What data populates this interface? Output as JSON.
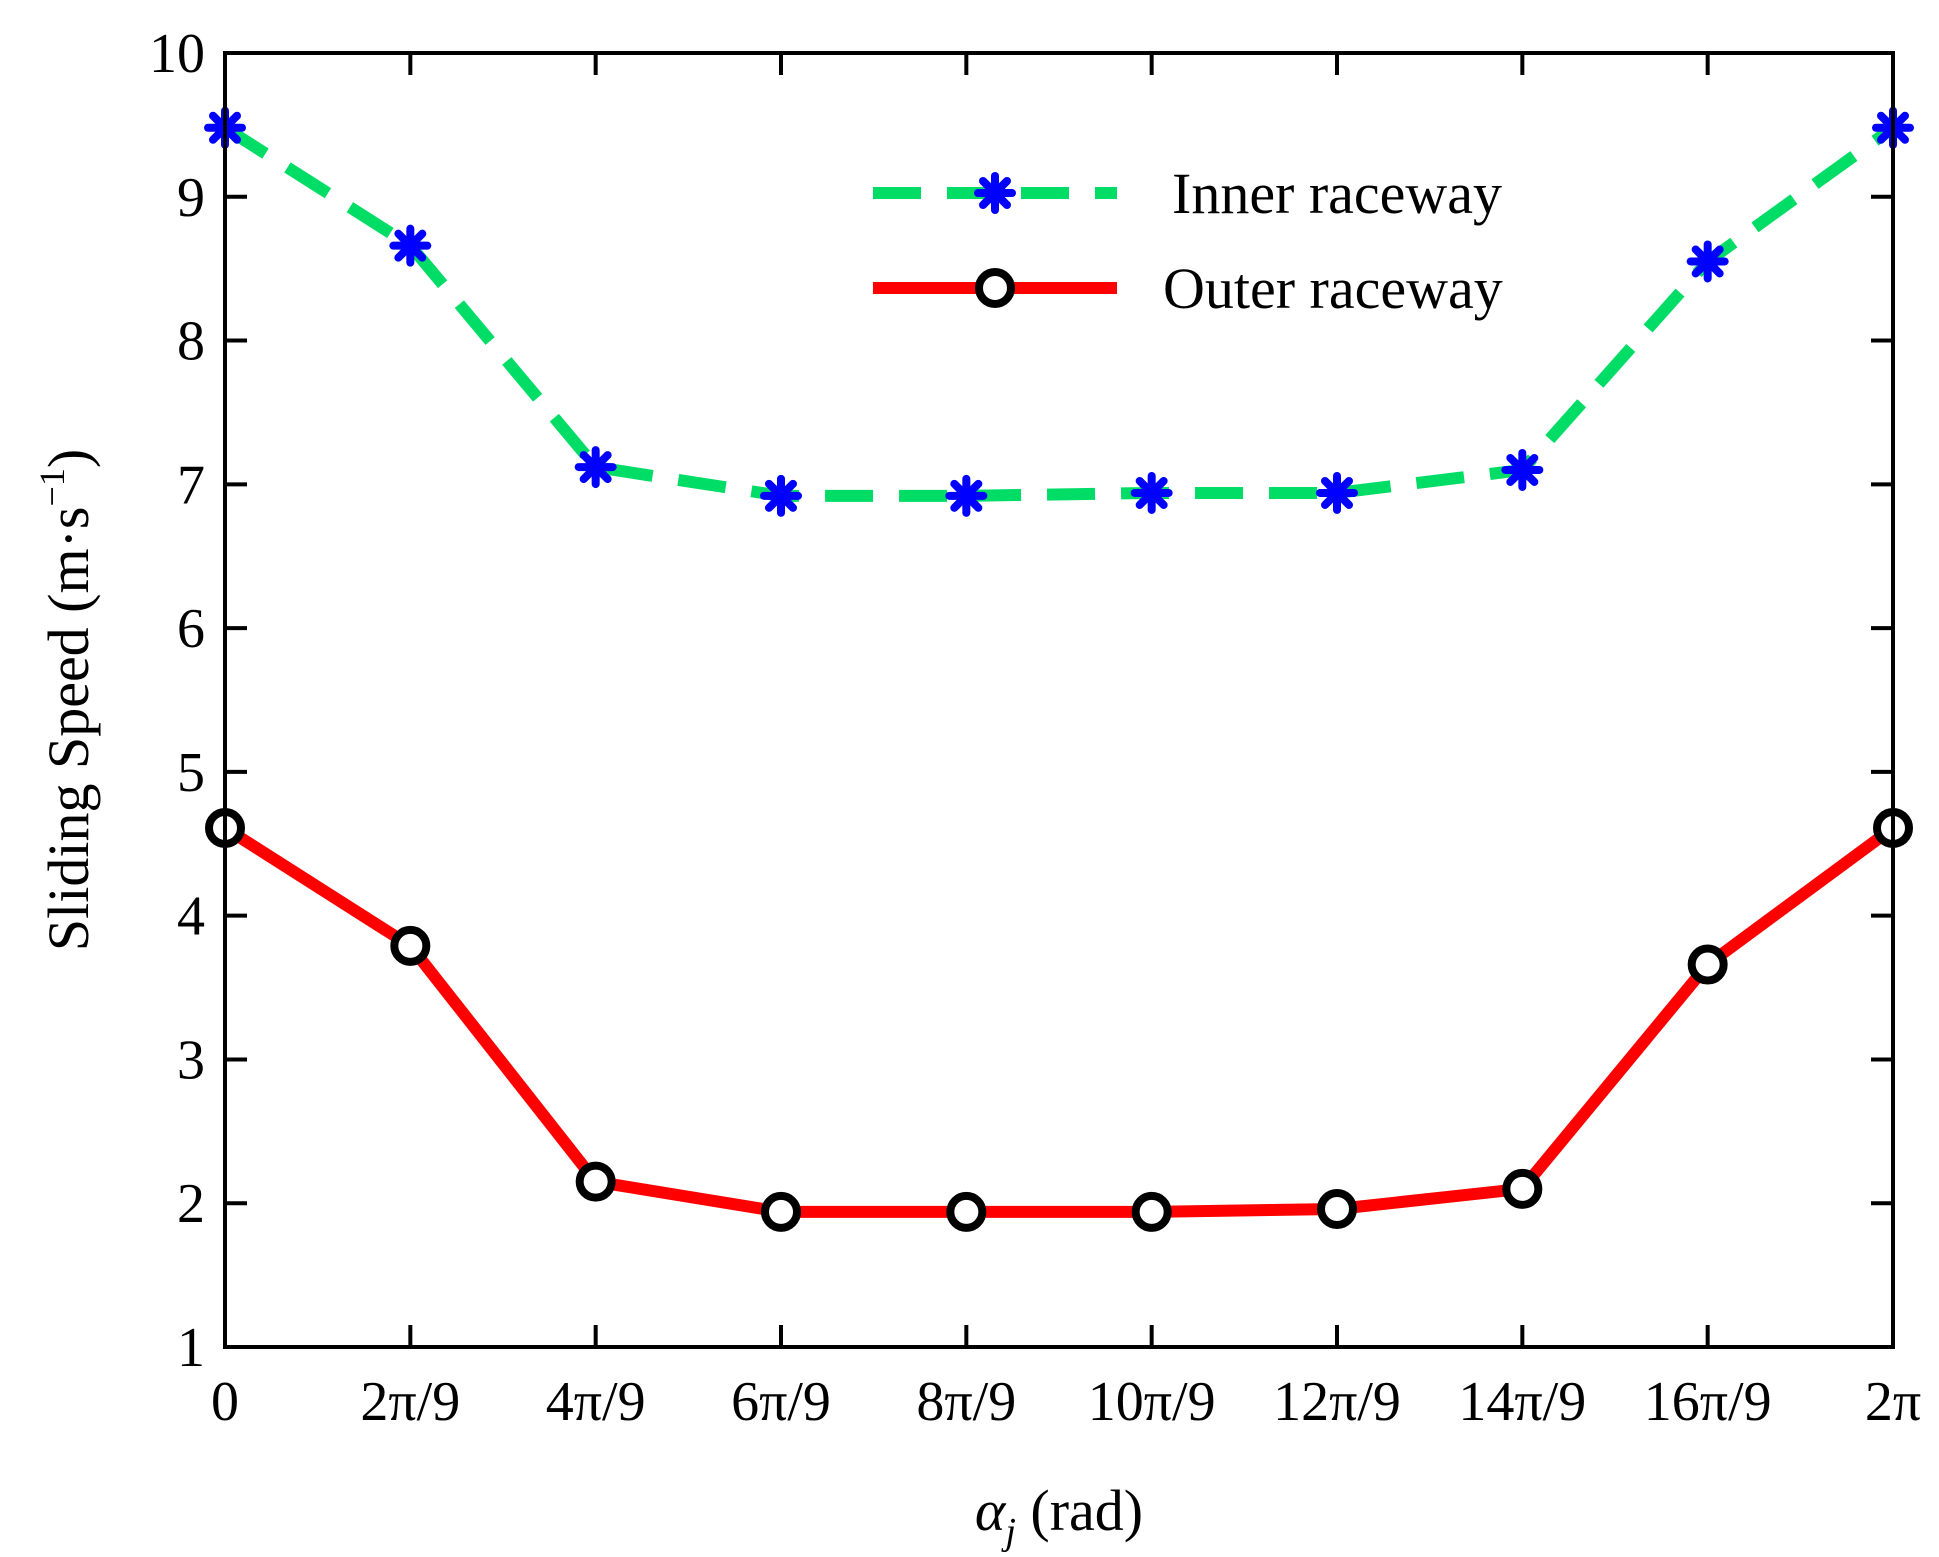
{
  "chart_data": {
    "type": "line",
    "title": "",
    "xlabel_symbol": "α",
    "xlabel_subscript": "j",
    "xlabel_unit": " (rad)",
    "ylabel_main": "Sliding Speed (m·s",
    "ylabel_sup": "−1",
    "ylabel_close": ")",
    "ylim": [
      1,
      10
    ],
    "yticks": [
      "1",
      "2",
      "3",
      "4",
      "5",
      "6",
      "7",
      "8",
      "9",
      "10"
    ],
    "categories": [
      "0",
      "2π/9",
      "4π/9",
      "6π/9",
      "8π/9",
      "10π/9",
      "12π/9",
      "14π/9",
      "16π/9",
      "2π"
    ],
    "series": [
      {
        "name": "Inner raceway",
        "values": [
          9.48,
          8.66,
          7.12,
          6.92,
          6.92,
          6.94,
          6.94,
          7.1,
          8.55,
          9.48
        ],
        "line_color": "#00dd66",
        "line_style": "dashed",
        "marker": "asterisk",
        "marker_color": "#0000ff"
      },
      {
        "name": "Outer raceway",
        "values": [
          4.61,
          3.79,
          2.15,
          1.94,
          1.94,
          1.94,
          1.96,
          2.1,
          3.66,
          4.61
        ],
        "line_color": "#ff0000",
        "line_style": "solid",
        "marker": "circle",
        "marker_color": "#000000"
      }
    ],
    "legend_position": "top-right",
    "grid": false
  }
}
